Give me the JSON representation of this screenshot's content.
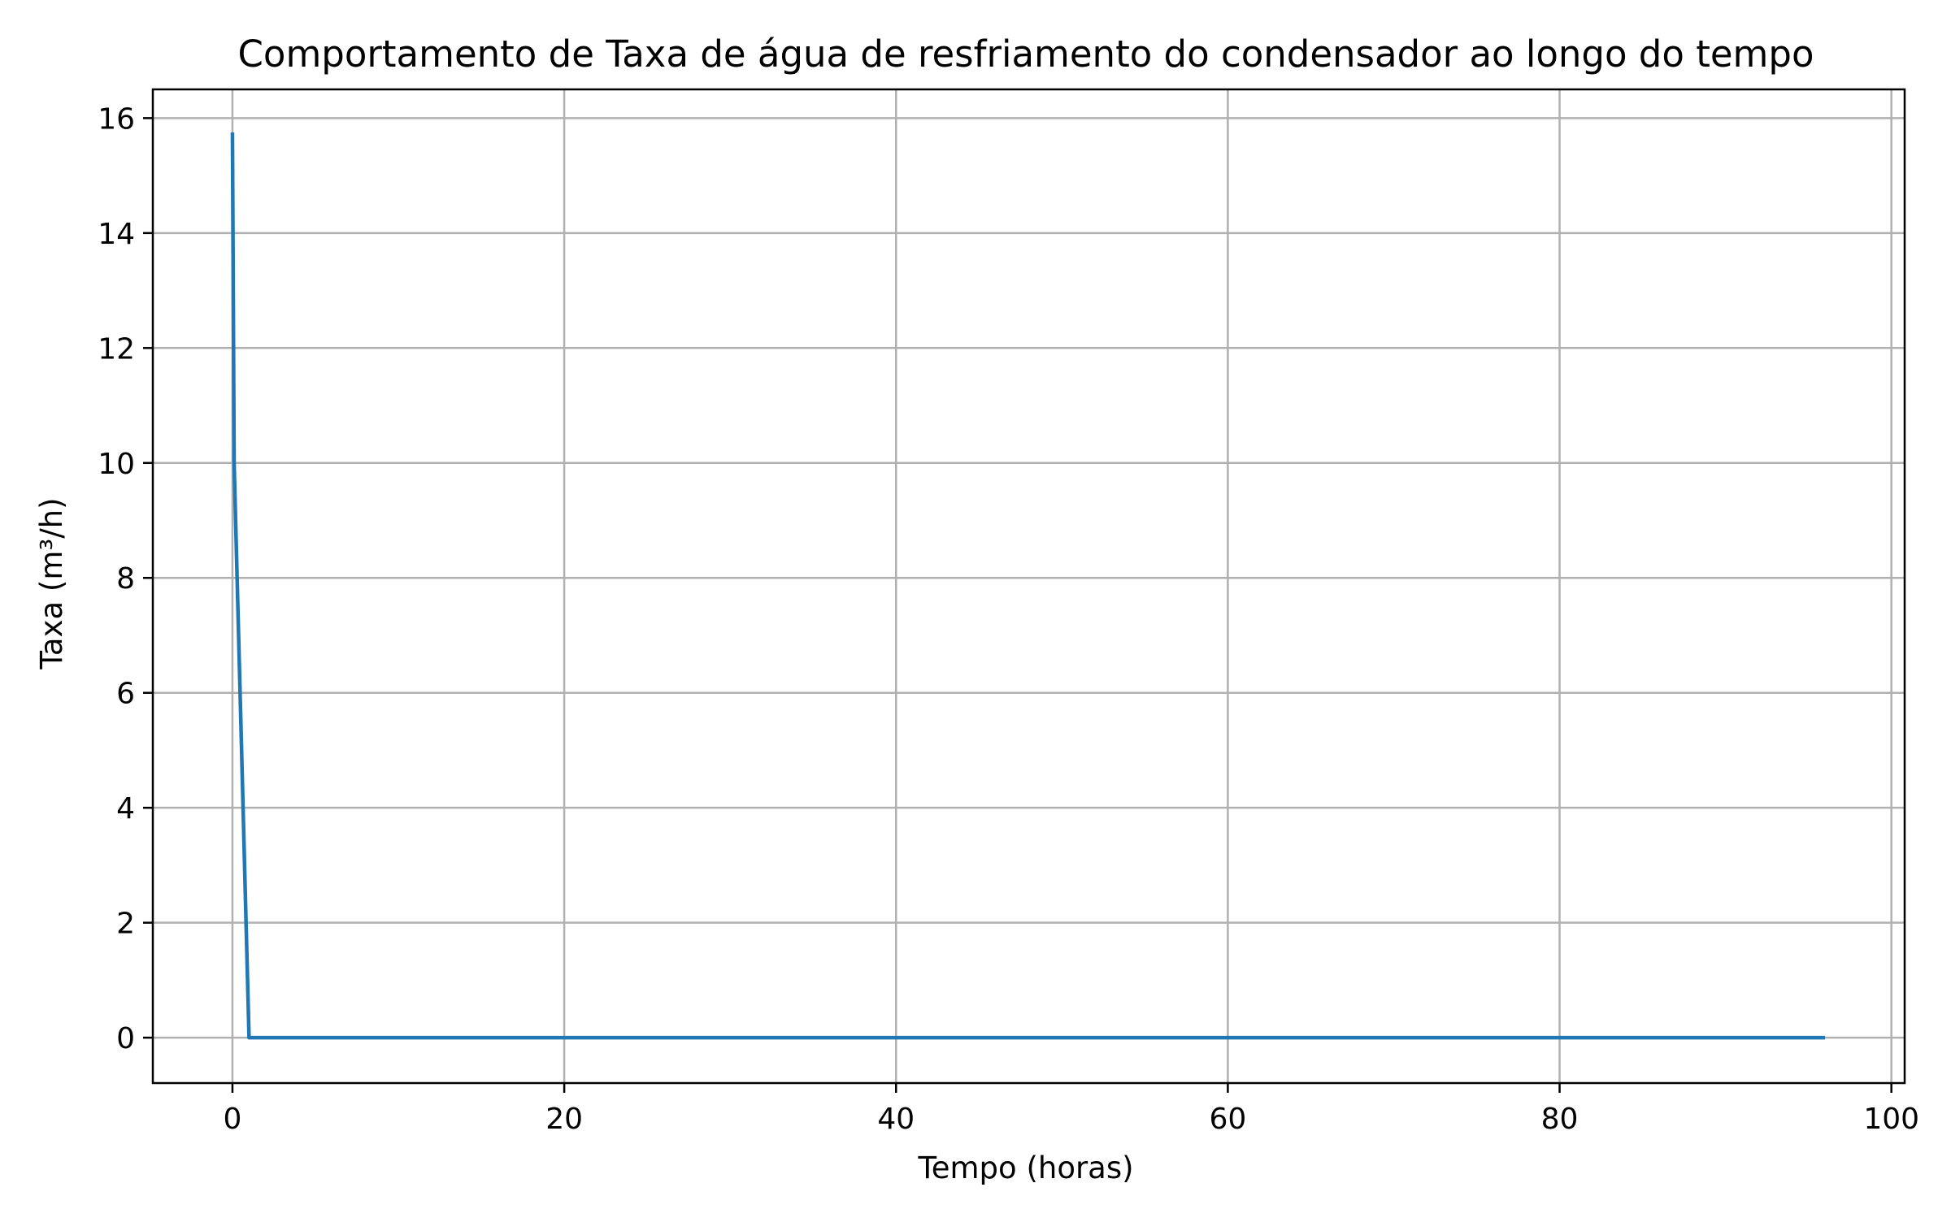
{
  "chart_data": {
    "type": "line",
    "title": "Comportamento de Taxa de água de resfriamento do condensador ao longo do tempo",
    "xlabel": "Tempo (horas)",
    "ylabel": "Taxa (m³/h)",
    "xlim": [
      -4.8,
      100.8
    ],
    "ylim": [
      -0.79,
      16.5
    ],
    "xticks": [
      0,
      20,
      40,
      60,
      80,
      100
    ],
    "yticks": [
      0,
      2,
      4,
      6,
      8,
      10,
      12,
      14,
      16
    ],
    "grid": true,
    "legend": "none",
    "series": [
      {
        "color": "#1f77b4",
        "x": [
          0,
          0.1,
          1,
          2,
          10,
          20,
          40,
          60,
          80,
          96
        ],
        "y": [
          15.75,
          10,
          0,
          0,
          0,
          0,
          0,
          0,
          0,
          0
        ]
      }
    ]
  }
}
